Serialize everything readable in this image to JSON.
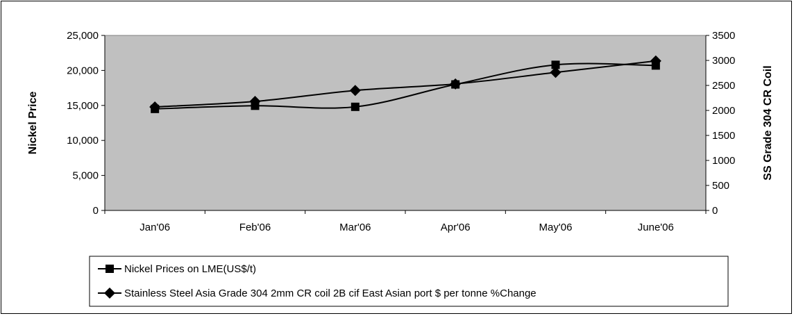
{
  "chart_data": {
    "type": "line",
    "categories": [
      "Jan'06",
      "Feb'06",
      "Mar'06",
      "Apr'06",
      "May'06",
      "June'06"
    ],
    "series": [
      {
        "name": "Nickel Prices on LME(US$/t)",
        "axis": "left",
        "marker": "square",
        "values": [
          14500,
          14950,
          14800,
          18000,
          20800,
          20700
        ]
      },
      {
        "name": "Stainless Steel Asia Grade 304 2mm CR coil 2B cif East Asian port $ per tonne %Change",
        "axis": "right",
        "marker": "diamond",
        "values": [
          2070,
          2180,
          2400,
          2530,
          2760,
          2990
        ]
      }
    ],
    "ylabel": "Nickel Price",
    "y2label": "SS Grade 304 CR Coil",
    "ylim": [
      0,
      25000
    ],
    "y2lim": [
      0,
      3500
    ],
    "yticks": [
      "0",
      "5,000",
      "10,000",
      "15,000",
      "20,000",
      "25,000"
    ],
    "y2ticks": [
      "0",
      "500",
      "1000",
      "1500",
      "2000",
      "2500",
      "3000",
      "3500"
    ],
    "plot_background": "#c0c0c0",
    "line_color": "#000000",
    "grid": false,
    "legend_position": "bottom"
  }
}
